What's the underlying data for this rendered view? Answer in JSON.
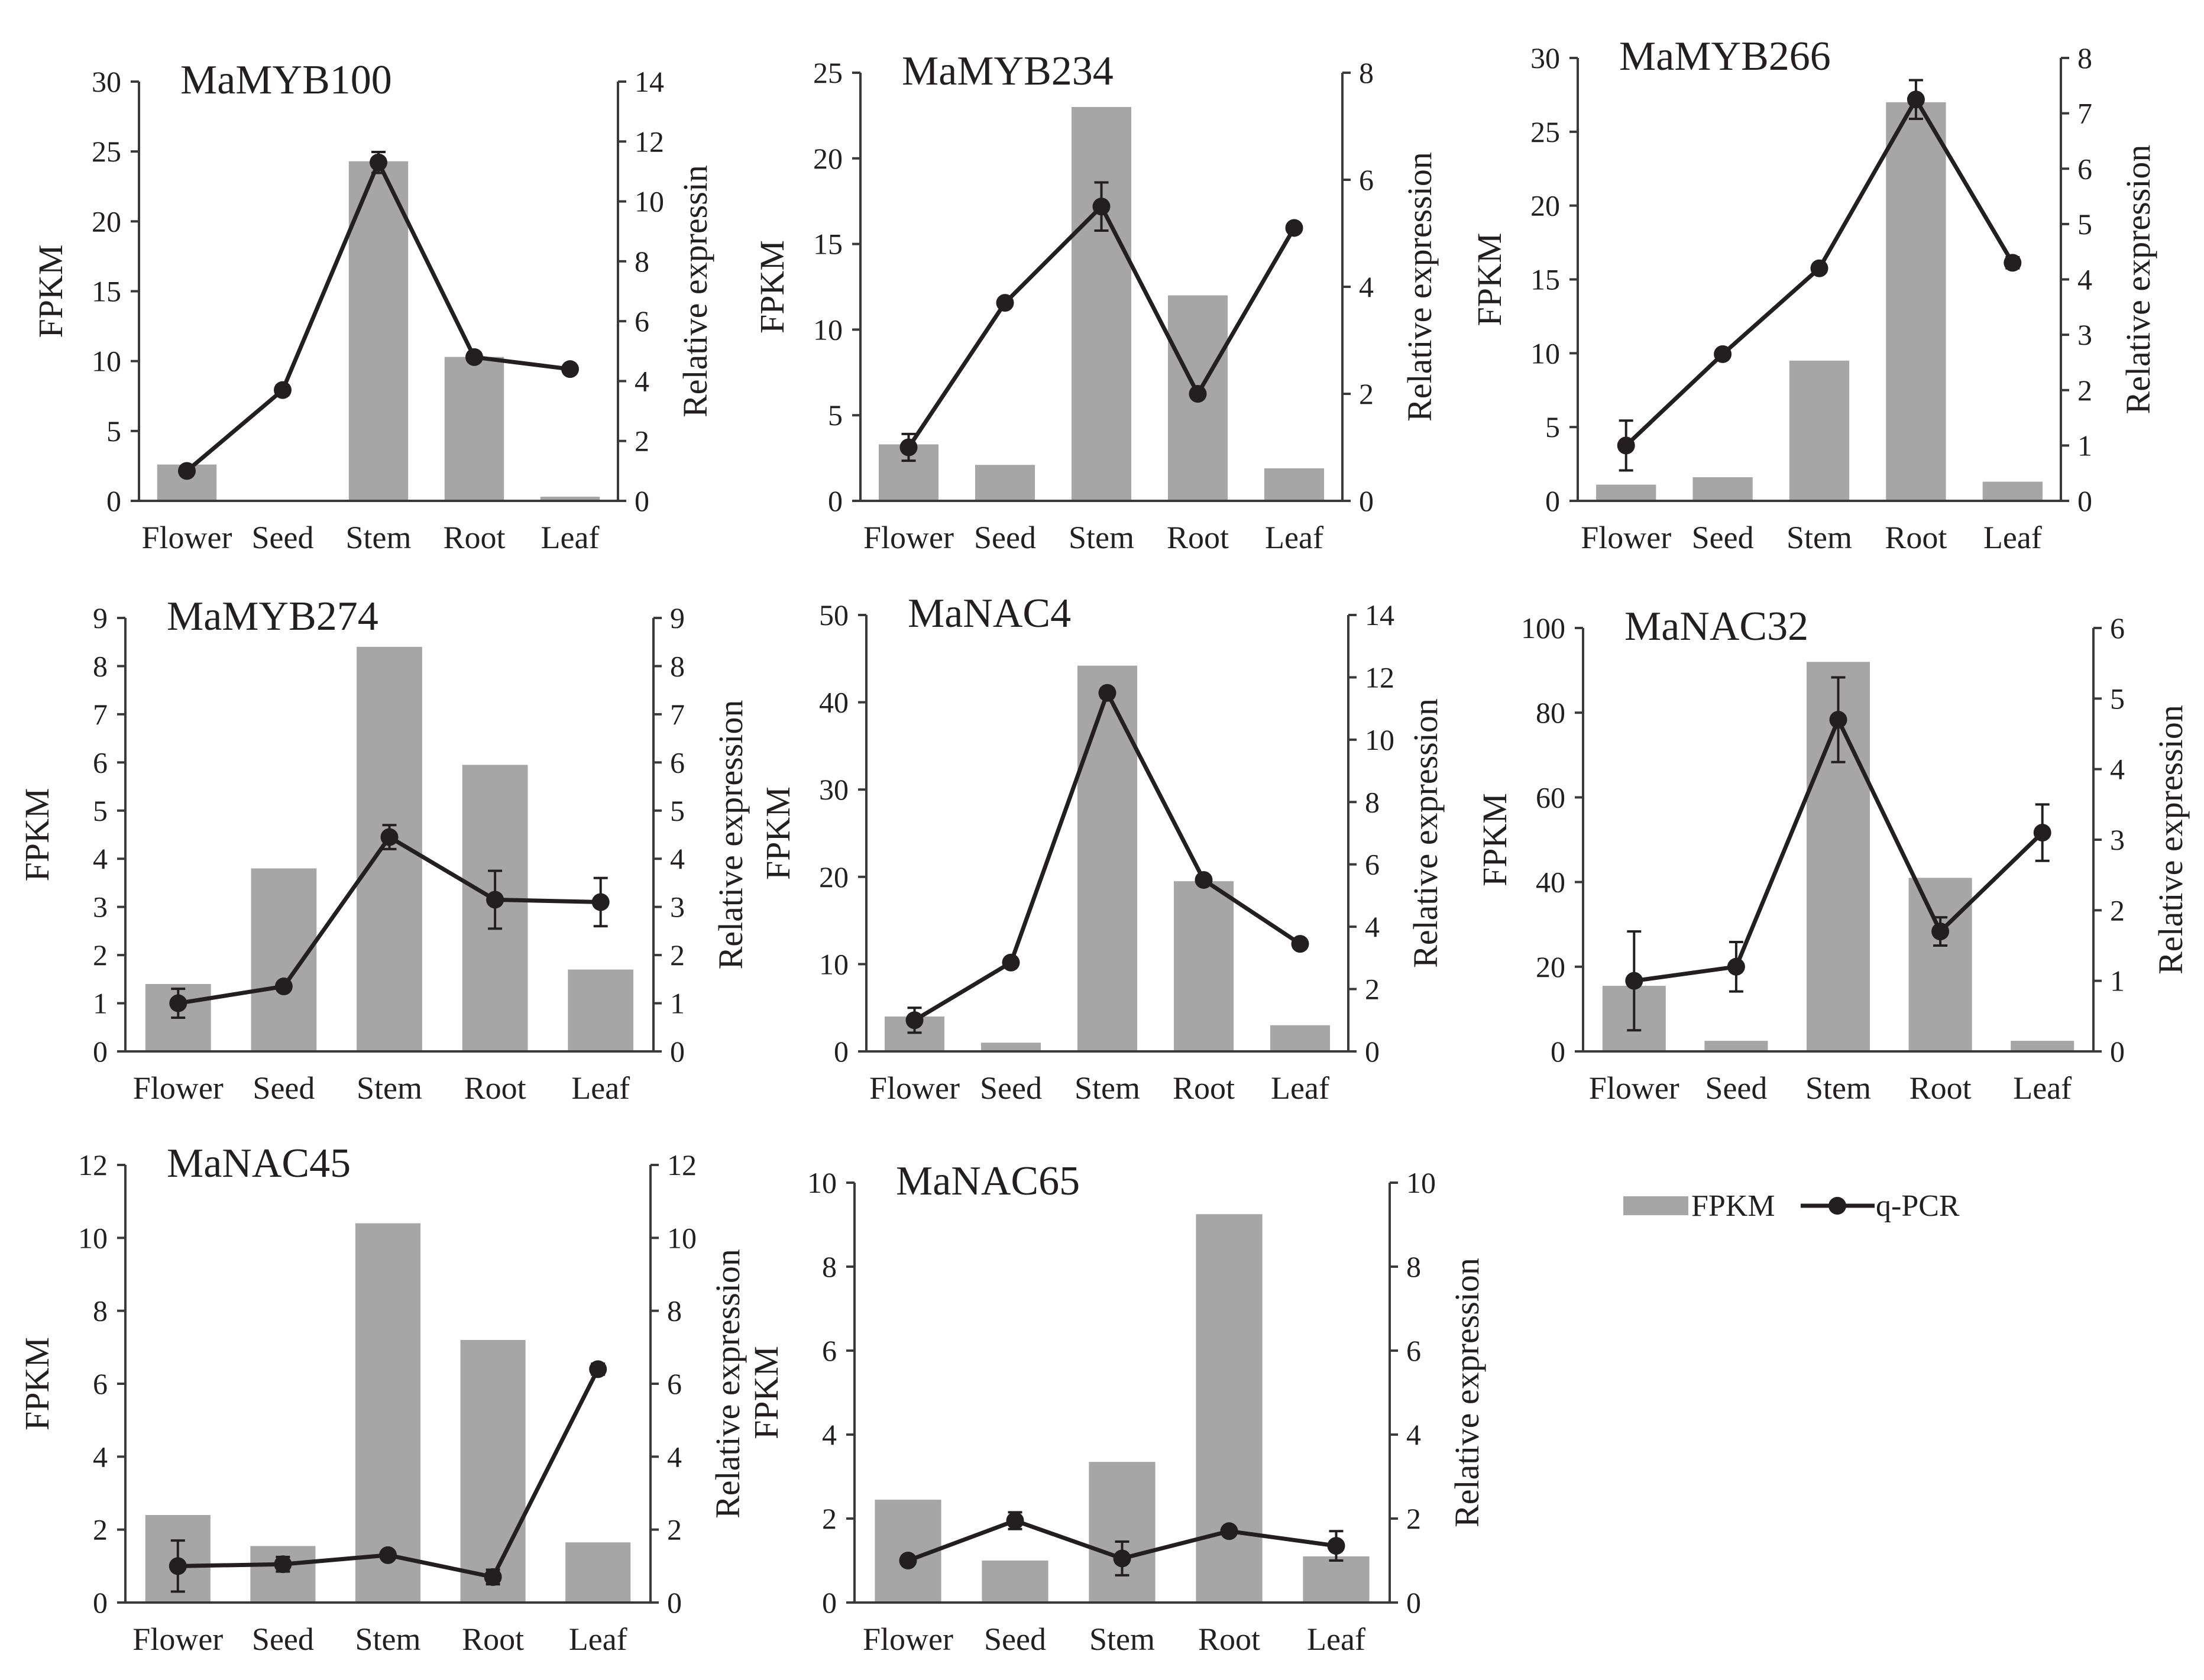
{
  "colors": {
    "bar": "#a6a6a6",
    "line": "#231f20",
    "axis": "#3a3a3a",
    "text": "#231f20"
  },
  "legend": {
    "fpkm_label": "FPKM",
    "qpcr_label": "q-PCR"
  },
  "chart_data": [
    {
      "type": "bar",
      "title": "MaMYB100",
      "ylabel": "FPKM",
      "y2label": "Relative expressin",
      "categories": [
        "Flower",
        "Seed",
        "Stem",
        "Root",
        "Leaf"
      ],
      "ylim": [
        0,
        30
      ],
      "yticks": [
        0,
        5,
        10,
        15,
        20,
        25,
        30
      ],
      "y2lim": [
        0,
        14
      ],
      "y2ticks": [
        0,
        2,
        4,
        6,
        8,
        10,
        12,
        14
      ],
      "series": [
        {
          "name": "FPKM",
          "axis": "left",
          "kind": "bar",
          "values": [
            2.6,
            0.05,
            24.3,
            10.3,
            0.3
          ]
        },
        {
          "name": "q-PCR",
          "axis": "right",
          "kind": "line",
          "values": [
            1.0,
            3.7,
            11.3,
            4.8,
            4.4
          ],
          "errors": [
            0.15,
            0.15,
            0.35,
            0.15,
            0.1
          ]
        }
      ]
    },
    {
      "type": "bar",
      "title": "MaMYB234",
      "ylabel": "FPKM",
      "y2label": "Relative expression",
      "categories": [
        "Flower",
        "Seed",
        "Stem",
        "Root",
        "Leaf"
      ],
      "ylim": [
        0,
        25
      ],
      "yticks": [
        0,
        5,
        10,
        15,
        20,
        25
      ],
      "y2lim": [
        0,
        8
      ],
      "y2ticks": [
        0,
        2,
        4,
        6,
        8
      ],
      "series": [
        {
          "name": "FPKM",
          "axis": "left",
          "kind": "bar",
          "values": [
            3.3,
            2.1,
            23.0,
            12.0,
            1.9
          ]
        },
        {
          "name": "q-PCR",
          "axis": "right",
          "kind": "line",
          "values": [
            1.0,
            3.7,
            5.5,
            2.0,
            5.1
          ],
          "errors": [
            0.25,
            0.05,
            0.45,
            0.05,
            0.05
          ]
        }
      ]
    },
    {
      "type": "bar",
      "title": "MaMYB266",
      "ylabel": "FPKM",
      "y2label": "Relative expression",
      "categories": [
        "Flower",
        "Seed",
        "Stem",
        "Root",
        "Leaf"
      ],
      "ylim": [
        0,
        30
      ],
      "yticks": [
        0,
        5,
        10,
        15,
        20,
        25,
        30
      ],
      "y2lim": [
        0,
        8
      ],
      "y2ticks": [
        0,
        1,
        2,
        3,
        4,
        5,
        6,
        7,
        8
      ],
      "series": [
        {
          "name": "FPKM",
          "axis": "left",
          "kind": "bar",
          "values": [
            1.1,
            1.6,
            9.5,
            27.0,
            1.3
          ]
        },
        {
          "name": "q-PCR",
          "axis": "right",
          "kind": "line",
          "values": [
            1.0,
            2.65,
            4.2,
            7.25,
            4.3
          ],
          "errors": [
            0.45,
            0.05,
            0.05,
            0.35,
            0.1
          ]
        }
      ]
    },
    {
      "type": "bar",
      "title": "MaMYB274",
      "ylabel": "FPKM",
      "y2label": "Relative expression",
      "categories": [
        "Flower",
        "Seed",
        "Stem",
        "Root",
        "Leaf"
      ],
      "ylim": [
        0,
        9
      ],
      "yticks": [
        0,
        1,
        2,
        3,
        4,
        5,
        6,
        7,
        8,
        9
      ],
      "y2lim": [
        0,
        9
      ],
      "y2ticks": [
        0,
        1,
        2,
        3,
        4,
        5,
        6,
        7,
        8,
        9
      ],
      "series": [
        {
          "name": "FPKM",
          "axis": "left",
          "kind": "bar",
          "values": [
            1.4,
            3.8,
            8.4,
            5.95,
            1.7
          ]
        },
        {
          "name": "q-PCR",
          "axis": "right",
          "kind": "line",
          "values": [
            1.0,
            1.35,
            4.45,
            3.15,
            3.1
          ],
          "errors": [
            0.3,
            0.05,
            0.25,
            0.6,
            0.5
          ]
        }
      ]
    },
    {
      "type": "bar",
      "title": "MaNAC4",
      "ylabel": "FPKM",
      "y2label": "Relative expression",
      "categories": [
        "Flower",
        "Seed",
        "Stem",
        "Root",
        "Leaf"
      ],
      "ylim": [
        0,
        50
      ],
      "yticks": [
        0,
        10,
        20,
        30,
        40,
        50
      ],
      "y2lim": [
        0,
        14
      ],
      "y2ticks": [
        0,
        2,
        4,
        6,
        8,
        10,
        12,
        14
      ],
      "series": [
        {
          "name": "FPKM",
          "axis": "left",
          "kind": "bar",
          "values": [
            4.0,
            1.0,
            44.2,
            19.5,
            3.0
          ]
        },
        {
          "name": "q-PCR",
          "axis": "right",
          "kind": "line",
          "values": [
            1.0,
            2.85,
            11.5,
            5.5,
            3.45
          ],
          "errors": [
            0.4,
            0.1,
            0.15,
            0.1,
            0.05
          ]
        }
      ]
    },
    {
      "type": "bar",
      "title": "MaNAC32",
      "ylabel": "FPKM",
      "y2label": "Relative expression",
      "categories": [
        "Flower",
        "Seed",
        "Stem",
        "Root",
        "Leaf"
      ],
      "ylim": [
        0,
        100
      ],
      "yticks": [
        0,
        20,
        40,
        60,
        80,
        100
      ],
      "y2lim": [
        0,
        6
      ],
      "y2ticks": [
        0,
        1,
        2,
        3,
        4,
        5,
        6
      ],
      "series": [
        {
          "name": "FPKM",
          "axis": "left",
          "kind": "bar",
          "values": [
            15.5,
            2.5,
            92.0,
            41.0,
            2.5
          ]
        },
        {
          "name": "q-PCR",
          "axis": "right",
          "kind": "line",
          "values": [
            1.0,
            1.2,
            4.7,
            1.7,
            3.1
          ],
          "errors": [
            0.7,
            0.35,
            0.6,
            0.2,
            0.4
          ]
        }
      ]
    },
    {
      "type": "bar",
      "title": "MaNAC45",
      "ylabel": "FPKM",
      "y2label": "Relative expression",
      "categories": [
        "Flower",
        "Seed",
        "Stem",
        "Root",
        "Leaf"
      ],
      "ylim": [
        0,
        12
      ],
      "yticks": [
        0,
        2,
        4,
        6,
        8,
        10,
        12
      ],
      "y2lim": [
        0,
        12
      ],
      "y2ticks": [
        0,
        2,
        4,
        6,
        8,
        10,
        12
      ],
      "series": [
        {
          "name": "FPKM",
          "axis": "left",
          "kind": "bar",
          "values": [
            2.4,
            1.55,
            10.4,
            7.2,
            1.65
          ]
        },
        {
          "name": "q-PCR",
          "axis": "right",
          "kind": "line",
          "values": [
            1.0,
            1.05,
            1.3,
            0.7,
            6.4
          ],
          "errors": [
            0.7,
            0.2,
            0.1,
            0.2,
            0.15
          ]
        }
      ]
    },
    {
      "type": "bar",
      "title": "MaNAC65",
      "ylabel": "FPKM",
      "y2label": "Relative expression",
      "categories": [
        "Flower",
        "Seed",
        "Stem",
        "Root",
        "Leaf"
      ],
      "ylim": [
        0,
        10
      ],
      "yticks": [
        0,
        2,
        4,
        6,
        8,
        10
      ],
      "y2lim": [
        0,
        10
      ],
      "y2ticks": [
        0,
        2,
        4,
        6,
        8,
        10
      ],
      "series": [
        {
          "name": "FPKM",
          "axis": "left",
          "kind": "bar",
          "values": [
            2.45,
            1.0,
            3.35,
            9.25,
            1.1
          ]
        },
        {
          "name": "q-PCR",
          "axis": "right",
          "kind": "line",
          "values": [
            1.0,
            1.95,
            1.05,
            1.7,
            1.35
          ],
          "errors": [
            0.05,
            0.2,
            0.4,
            0.1,
            0.35
          ]
        }
      ]
    }
  ]
}
